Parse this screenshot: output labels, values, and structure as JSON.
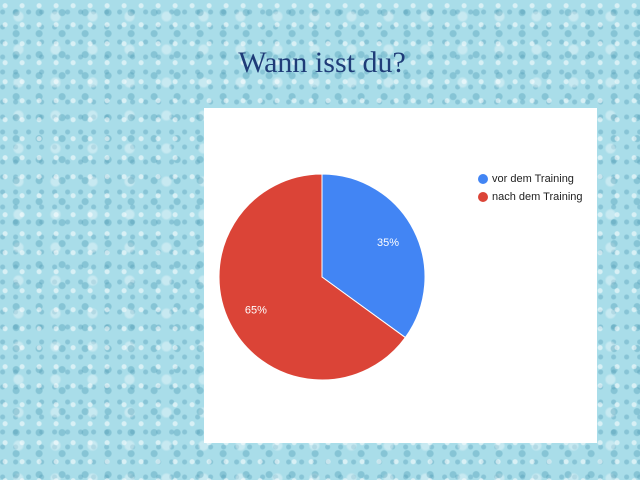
{
  "chart_data": {
    "type": "pie",
    "title": "Wann isst du?",
    "categories": [
      "vor dem Training",
      "nach dem Training"
    ],
    "values": [
      35,
      65
    ],
    "value_labels": [
      "35%",
      "65%"
    ],
    "colors": [
      "#4285f4",
      "#db4437"
    ],
    "legend": "right"
  }
}
